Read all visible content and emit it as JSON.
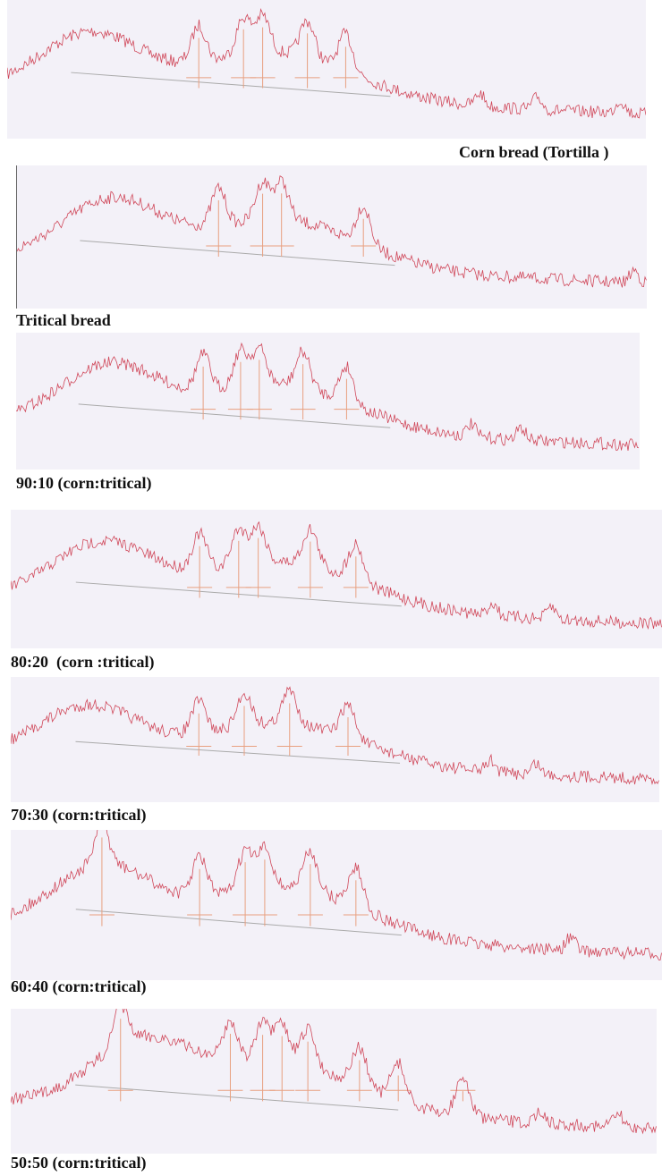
{
  "panels": [
    {
      "label": "Corn bread (Tortilla )"
    },
    {
      "label": "Tritical bread"
    },
    {
      "label": "90:10 (corn:tritical)"
    },
    {
      "label": "80:20  (corn :tritical)"
    },
    {
      "label": "70:30 (corn:tritical)"
    },
    {
      "label": "60:40 (corn:tritical)"
    },
    {
      "label": "50:50 (corn:tritical)"
    }
  ]
}
